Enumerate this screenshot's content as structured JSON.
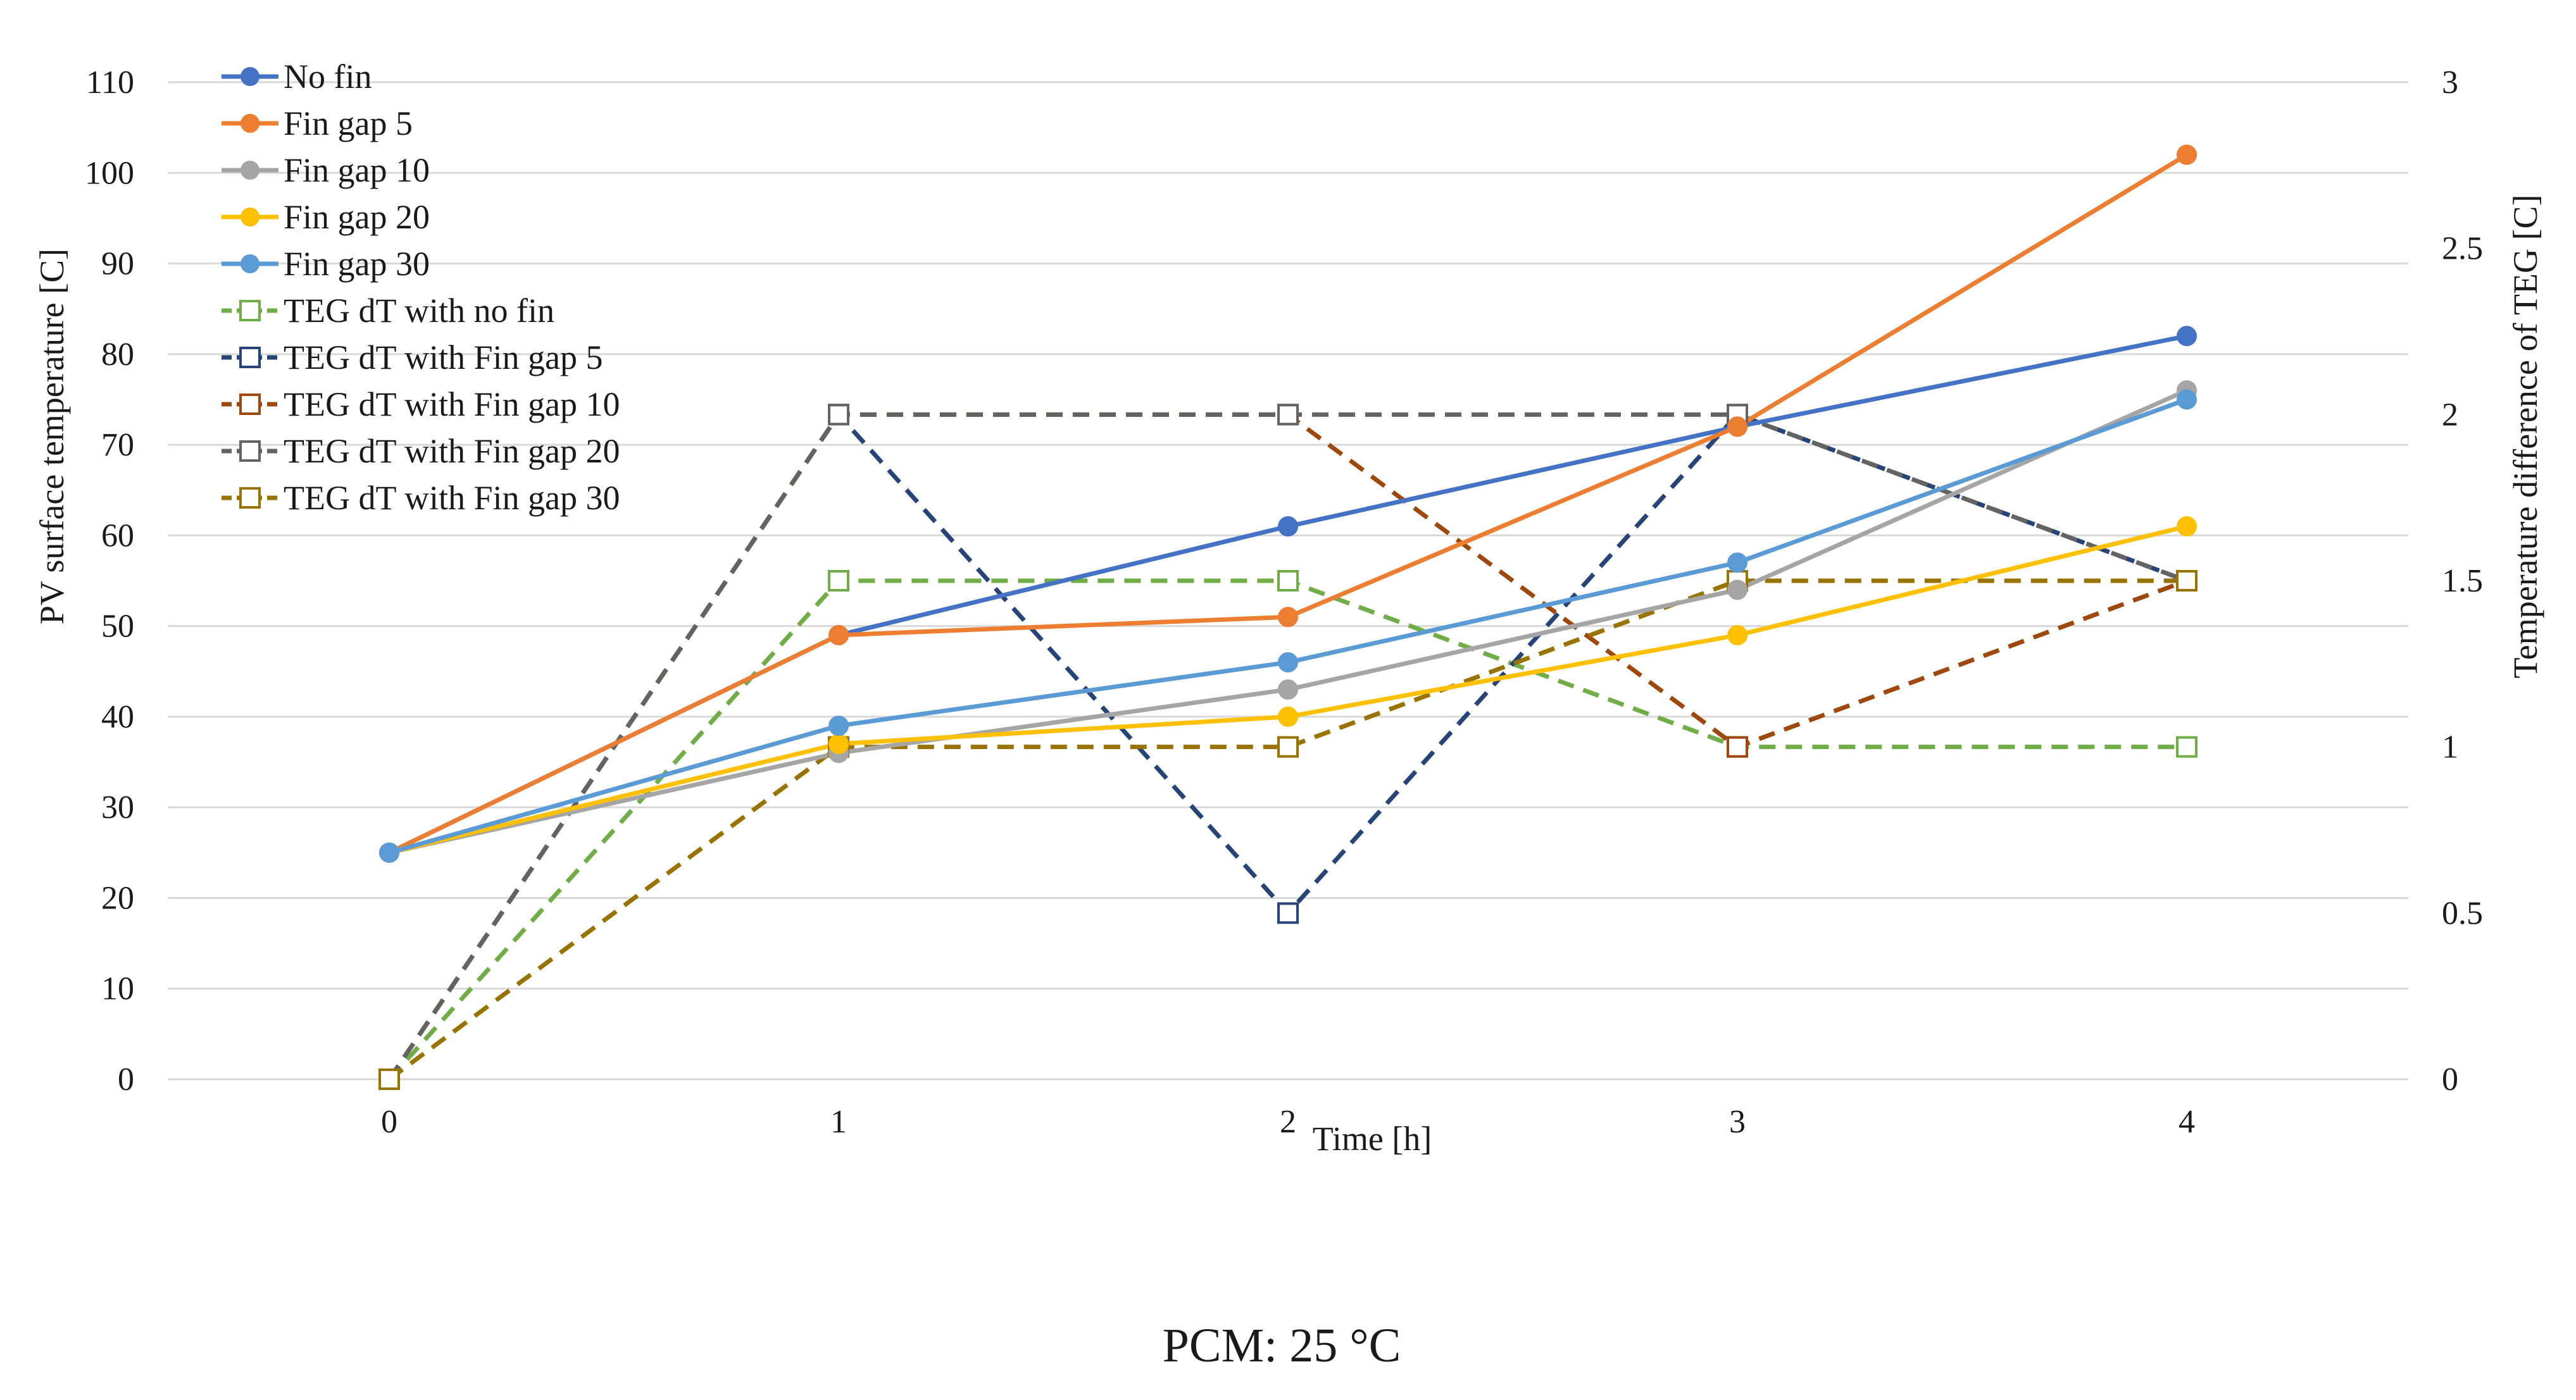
{
  "chart_data": {
    "type": "line",
    "caption": "PCM: 25 °C",
    "xlabel": "Time [h]",
    "ylabel_left": "PV surface temperature [C]",
    "ylabel_right": "Temperature difference of TEG [C]",
    "x": [
      0,
      1,
      2,
      3,
      4
    ],
    "x_tick_labels": [
      "0",
      "1",
      "2",
      "3",
      "4"
    ],
    "ylim_left": [
      0,
      110
    ],
    "ylim_right": [
      0,
      3
    ],
    "y_left_tick_labels": [
      "0",
      "10",
      "20",
      "30",
      "40",
      "50",
      "60",
      "70",
      "80",
      "90",
      "100",
      "110"
    ],
    "y_right_tick_labels": [
      "0",
      "0.5",
      "1",
      "1.5",
      "2",
      "2.5",
      "3"
    ],
    "grid": true,
    "legend_position": "top-left",
    "series": [
      {
        "name": "No fin",
        "axis": "left",
        "values": [
          25,
          49,
          61,
          72,
          82
        ],
        "color": "#4472c4",
        "marker": "circle",
        "dashed": false
      },
      {
        "name": "Fin gap 5",
        "axis": "left",
        "values": [
          25,
          49,
          51,
          72,
          102
        ],
        "color": "#ed7d31",
        "marker": "circle",
        "dashed": false
      },
      {
        "name": "Fin gap 10",
        "axis": "left",
        "values": [
          25,
          36,
          43,
          54,
          76
        ],
        "color": "#a5a5a5",
        "marker": "circle",
        "dashed": false
      },
      {
        "name": "Fin gap 20",
        "axis": "left",
        "values": [
          25,
          37,
          40,
          49,
          61
        ],
        "color": "#ffc000",
        "marker": "circle",
        "dashed": false
      },
      {
        "name": "Fin gap 30",
        "axis": "left",
        "values": [
          25,
          39,
          46,
          57,
          75
        ],
        "color": "#5b9bd5",
        "marker": "circle",
        "dashed": false
      },
      {
        "name": "TEG dT with no fin",
        "axis": "right",
        "values": [
          0,
          1.5,
          1.5,
          1,
          1
        ],
        "color": "#70ad47",
        "marker": "square-open",
        "dashed": true
      },
      {
        "name": "TEG dT with Fin gap 5",
        "axis": "right",
        "values": [
          0,
          2,
          0.5,
          2,
          1.5
        ],
        "color": "#264478",
        "marker": "square-open",
        "dashed": true
      },
      {
        "name": "TEG dT with Fin gap 10",
        "axis": "right",
        "values": [
          0,
          2,
          2,
          1,
          1.5
        ],
        "color": "#9e480e",
        "marker": "square-open",
        "dashed": true
      },
      {
        "name": "TEG dT with Fin gap 20",
        "axis": "right",
        "values": [
          0,
          2,
          2,
          2,
          1.5
        ],
        "color": "#636363",
        "marker": "square-open",
        "dashed": true
      },
      {
        "name": "TEG dT with Fin gap 30",
        "axis": "right",
        "values": [
          0,
          1,
          1,
          1.5,
          1.5
        ],
        "color": "#997300",
        "marker": "square-open",
        "dashed": true
      }
    ]
  }
}
